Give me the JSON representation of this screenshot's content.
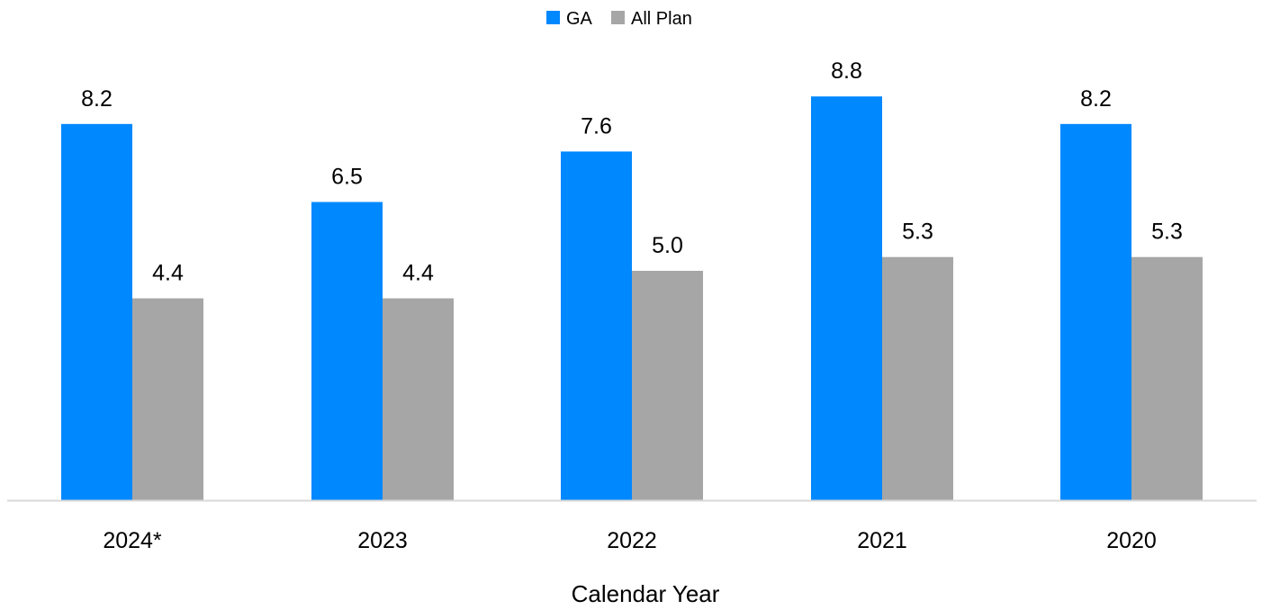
{
  "chart_data": {
    "type": "bar",
    "categories": [
      "2024*",
      "2023",
      "2022",
      "2021",
      "2020"
    ],
    "series": [
      {
        "name": "GA",
        "color": "#0088FF",
        "values": [
          8.2,
          6.5,
          7.6,
          8.8,
          8.2
        ]
      },
      {
        "name": "All Plan",
        "color": "#A6A6A6",
        "values": [
          4.4,
          4.4,
          5.0,
          5.3,
          5.3
        ]
      }
    ],
    "xlabel": "Calendar Year",
    "ylabel": "",
    "ylim": [
      0,
      10
    ],
    "grid": false,
    "legend_position": "top-center",
    "show_data_labels": true,
    "axis_color": "#D9D9D9"
  }
}
